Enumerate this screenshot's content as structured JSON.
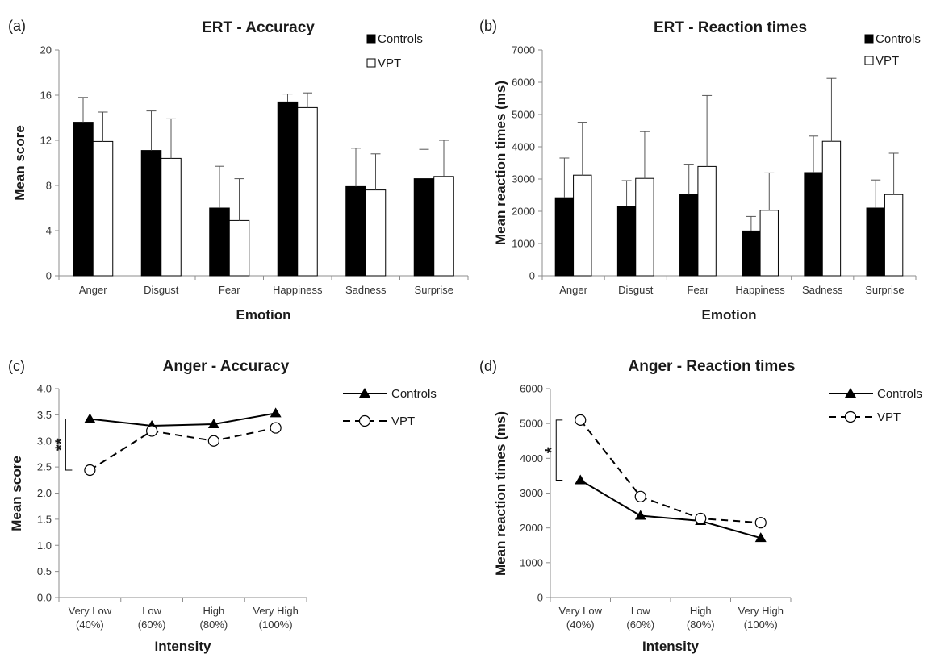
{
  "chart_data": [
    {
      "panel": "(a)",
      "type": "bar",
      "title": "ERT - Accuracy",
      "xlabel": "Emotion",
      "ylabel": "Mean score",
      "ylim": [
        0,
        20
      ],
      "yticks": [
        0,
        4,
        8,
        12,
        16,
        20
      ],
      "legend_position": "top-right",
      "categories": [
        "Anger",
        "Disgust",
        "Fear",
        "Happiness",
        "Sadness",
        "Surprise"
      ],
      "series": [
        {
          "name": "Controls",
          "fill": "#000000",
          "values": [
            13.6,
            11.1,
            6.0,
            15.4,
            7.9,
            8.6
          ],
          "errors": [
            2.2,
            3.5,
            3.7,
            0.7,
            3.4,
            2.6
          ]
        },
        {
          "name": "VPT",
          "fill": "#ffffff",
          "values": [
            11.9,
            10.4,
            4.9,
            14.9,
            7.6,
            8.8
          ],
          "errors": [
            2.6,
            3.5,
            3.7,
            1.3,
            3.2,
            3.2
          ]
        }
      ]
    },
    {
      "panel": "(b)",
      "type": "bar",
      "title": "ERT - Reaction times",
      "xlabel": "Emotion",
      "ylabel": "Mean reaction times (ms)",
      "ylim": [
        0,
        7000
      ],
      "yticks": [
        0,
        1000,
        2000,
        3000,
        4000,
        5000,
        6000,
        7000
      ],
      "legend_position": "top-right",
      "categories": [
        "Anger",
        "Disgust",
        "Fear",
        "Happiness",
        "Sadness",
        "Surprise"
      ],
      "series": [
        {
          "name": "Controls",
          "fill": "#000000",
          "values": [
            2420,
            2150,
            2520,
            1390,
            3200,
            2100
          ],
          "errors": [
            1230,
            800,
            940,
            450,
            1130,
            870
          ]
        },
        {
          "name": "VPT",
          "fill": "#ffffff",
          "values": [
            3120,
            3020,
            3390,
            2030,
            4170,
            2520
          ],
          "errors": [
            1640,
            1450,
            2200,
            1160,
            1950,
            1280
          ]
        }
      ]
    },
    {
      "panel": "(c)",
      "type": "line",
      "title": "Anger - Accuracy",
      "xlabel": "Intensity",
      "ylabel": "Mean score",
      "ylim": [
        0,
        4
      ],
      "yticks": [
        "0.0",
        "0.5",
        "1.0",
        "1.5",
        "2.0",
        "2.5",
        "3.0",
        "3.5",
        "4.0"
      ],
      "legend_position": "top-right",
      "categories": [
        [
          "Very Low",
          "(40%)"
        ],
        [
          "Low",
          "(60%)"
        ],
        [
          "High",
          "(80%)"
        ],
        [
          "Very High",
          "(100%)"
        ]
      ],
      "series": [
        {
          "name": "Controls",
          "values": [
            3.42,
            3.29,
            3.32,
            3.53
          ],
          "marker": "triangle",
          "line": "solid"
        },
        {
          "name": "VPT",
          "values": [
            2.44,
            3.19,
            3.0,
            3.25
          ],
          "marker": "circle",
          "line": "dashed"
        }
      ],
      "annotation": "**"
    },
    {
      "panel": "(d)",
      "type": "line",
      "title": "Anger - Reaction times",
      "xlabel": "Intensity",
      "ylabel": "Mean reaction times (ms)",
      "ylim": [
        0,
        6000
      ],
      "yticks": [
        "0",
        "1000",
        "2000",
        "3000",
        "4000",
        "5000",
        "6000"
      ],
      "legend_position": "top-right",
      "categories": [
        [
          "Very Low",
          "(40%)"
        ],
        [
          "Low",
          "(60%)"
        ],
        [
          "High",
          "(80%)"
        ],
        [
          "Very High",
          "(100%)"
        ]
      ],
      "series": [
        {
          "name": "Controls",
          "values": [
            3370,
            2350,
            2200,
            1710
          ],
          "marker": "triangle",
          "line": "solid"
        },
        {
          "name": "VPT",
          "values": [
            5100,
            2900,
            2270,
            2150
          ],
          "marker": "circle",
          "line": "dashed"
        }
      ],
      "annotation": "*"
    }
  ]
}
